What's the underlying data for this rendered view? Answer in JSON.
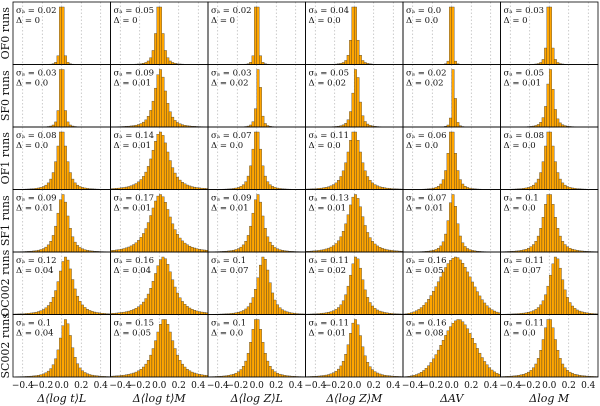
{
  "chart_data": {
    "type": "bar",
    "description_free": true,
    "rows": [
      "OF0 runs",
      "SF0 runs",
      "OF1 runs",
      "SF1 runs",
      "OC002 runs",
      "SC002 runs"
    ],
    "columns": [
      "Δ⟨log t⟩L",
      "Δ⟨log t⟩M",
      "Δ⟨log Z⟩L",
      "Δ⟨log Z⟩M",
      "ΔAV",
      "Δlog M"
    ],
    "x_ticks": [
      "−0.4",
      "−0.2",
      "0.0",
      "0.2",
      "0.4"
    ],
    "xlim": [
      -0.5,
      0.5
    ],
    "x_gridlines": [
      -0.4,
      -0.2,
      0.0,
      0.2,
      0.4
    ],
    "bar_color": "#ffa500",
    "grid": true,
    "annotations": [
      [
        {
          "sigma": "0.02",
          "delta": "0"
        },
        {
          "sigma": "0.05",
          "delta": "0"
        },
        {
          "sigma": "0.02",
          "delta": "0"
        },
        {
          "sigma": "0.04",
          "delta": "0.0"
        },
        {
          "sigma": "0.0",
          "delta": "0.0"
        },
        {
          "sigma": "0.03",
          "delta": "0"
        }
      ],
      [
        {
          "sigma": "0.03",
          "delta": "0.0"
        },
        {
          "sigma": "0.09",
          "delta": "0.01"
        },
        {
          "sigma": "0.03",
          "delta": "0.02"
        },
        {
          "sigma": "0.05",
          "delta": "0.02"
        },
        {
          "sigma": "0.02",
          "delta": "0.02"
        },
        {
          "sigma": "0.05",
          "delta": "0.01"
        }
      ],
      [
        {
          "sigma": "0.08",
          "delta": "0.0"
        },
        {
          "sigma": "0.14",
          "delta": "0.01"
        },
        {
          "sigma": "0.07",
          "delta": "0.0"
        },
        {
          "sigma": "0.11",
          "delta": "0.0"
        },
        {
          "sigma": "0.06",
          "delta": "0.0"
        },
        {
          "sigma": "0.08",
          "delta": "0.0"
        }
      ],
      [
        {
          "sigma": "0.09",
          "delta": "0.01"
        },
        {
          "sigma": "0.17",
          "delta": "0.01"
        },
        {
          "sigma": "0.09",
          "delta": "0.01"
        },
        {
          "sigma": "0.13",
          "delta": "0.01"
        },
        {
          "sigma": "0.07",
          "delta": "0.01"
        },
        {
          "sigma": "0.1",
          "delta": "0.0"
        }
      ],
      [
        {
          "sigma": "0.12",
          "delta": "0.04"
        },
        {
          "sigma": "0.16",
          "delta": "0.04"
        },
        {
          "sigma": "0.1",
          "delta": "0.07"
        },
        {
          "sigma": "0.11",
          "delta": "0.02"
        },
        {
          "sigma": "0.16",
          "delta": "0.05"
        },
        {
          "sigma": "0.11",
          "delta": "0.07"
        }
      ],
      [
        {
          "sigma": "0.1",
          "delta": "0.04"
        },
        {
          "sigma": "0.15",
          "delta": "0.05"
        },
        {
          "sigma": "0.1",
          "delta": "0.0"
        },
        {
          "sigma": "0.11",
          "delta": "0.01"
        },
        {
          "sigma": "0.16",
          "delta": "0.08"
        },
        {
          "sigma": "0.11",
          "delta": "0.0"
        }
      ]
    ],
    "panel_shapes": [
      [
        {
          "sigma": 0.02,
          "mu": 0.0,
          "kind": "lorentz"
        },
        {
          "sigma": 0.05,
          "mu": 0.0,
          "kind": "lorentz"
        },
        {
          "sigma": 0.02,
          "mu": 0.0,
          "kind": "lorentz"
        },
        {
          "sigma": 0.04,
          "mu": 0.0,
          "kind": "lorentz"
        },
        {
          "sigma": 0.01,
          "mu": 0.0,
          "kind": "lorentz"
        },
        {
          "sigma": 0.03,
          "mu": 0.0,
          "kind": "lorentz"
        }
      ],
      [
        {
          "sigma": 0.03,
          "mu": 0.0,
          "kind": "lorentz"
        },
        {
          "sigma": 0.09,
          "mu": 0.01,
          "kind": "lorentz"
        },
        {
          "sigma": 0.03,
          "mu": 0.02,
          "kind": "lorentz"
        },
        {
          "sigma": 0.05,
          "mu": 0.02,
          "kind": "lorentz"
        },
        {
          "sigma": 0.02,
          "mu": 0.02,
          "kind": "lorentz"
        },
        {
          "sigma": 0.05,
          "mu": 0.01,
          "kind": "lorentz"
        }
      ],
      [
        {
          "sigma": 0.08,
          "mu": 0.0,
          "kind": "lorentz"
        },
        {
          "sigma": 0.14,
          "mu": 0.01,
          "kind": "lorentz"
        },
        {
          "sigma": 0.07,
          "mu": 0.0,
          "kind": "lorentz"
        },
        {
          "sigma": 0.11,
          "mu": 0.0,
          "kind": "lorentz"
        },
        {
          "sigma": 0.06,
          "mu": 0.0,
          "kind": "lorentz"
        },
        {
          "sigma": 0.08,
          "mu": 0.0,
          "kind": "lorentz"
        }
      ],
      [
        {
          "sigma": 0.09,
          "mu": 0.01,
          "kind": "lorentz"
        },
        {
          "sigma": 0.17,
          "mu": 0.01,
          "kind": "lorentz"
        },
        {
          "sigma": 0.09,
          "mu": 0.01,
          "kind": "lorentz"
        },
        {
          "sigma": 0.13,
          "mu": 0.01,
          "kind": "lorentz"
        },
        {
          "sigma": 0.07,
          "mu": 0.01,
          "kind": "lorentz"
        },
        {
          "sigma": 0.1,
          "mu": 0.0,
          "kind": "lorentz"
        }
      ],
      [
        {
          "sigma": 0.12,
          "mu": 0.04,
          "kind": "lorentz"
        },
        {
          "sigma": 0.16,
          "mu": 0.04,
          "kind": "lorentz"
        },
        {
          "sigma": 0.1,
          "mu": 0.07,
          "kind": "lorentz"
        },
        {
          "sigma": 0.11,
          "mu": 0.02,
          "kind": "lorentz"
        },
        {
          "sigma": 0.16,
          "mu": 0.05,
          "kind": "broad"
        },
        {
          "sigma": 0.11,
          "mu": 0.07,
          "kind": "lorentz"
        }
      ],
      [
        {
          "sigma": 0.1,
          "mu": 0.04,
          "kind": "lorentz"
        },
        {
          "sigma": 0.15,
          "mu": 0.05,
          "kind": "lorentz"
        },
        {
          "sigma": 0.1,
          "mu": 0.0,
          "kind": "lorentz"
        },
        {
          "sigma": 0.11,
          "mu": 0.01,
          "kind": "lorentz"
        },
        {
          "sigma": 0.16,
          "mu": 0.08,
          "kind": "broad"
        },
        {
          "sigma": 0.11,
          "mu": 0.0,
          "kind": "lorentz"
        }
      ]
    ]
  }
}
